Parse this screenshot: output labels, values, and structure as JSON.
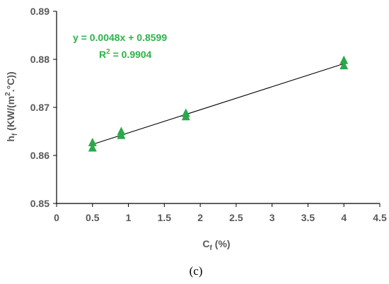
{
  "chart_data": {
    "type": "scatter",
    "xlabel": {
      "base": "C",
      "sub": "f",
      "rest": " (%)"
    },
    "ylabel": {
      "base": "h",
      "sub": "f",
      "rest": " (KW/(m",
      "sup": "2",
      "tail": ".°C))"
    },
    "xlim": [
      0,
      4.5
    ],
    "ylim": [
      0.85,
      0.89
    ],
    "xticks": [
      "0",
      "0.5",
      "1",
      "1.5",
      "2",
      "2.5",
      "3",
      "3.5",
      "4",
      "4.5"
    ],
    "yticks": [
      "0.85",
      "0.86",
      "0.87",
      "0.88",
      "0.89"
    ],
    "series": [
      {
        "x": [
          0.5,
          0.5,
          0.9,
          0.9,
          1.8,
          1.8,
          4.0,
          4.0
        ],
        "y": [
          0.8628,
          0.8617,
          0.8651,
          0.8643,
          0.8689,
          0.8682,
          0.8799,
          0.8788
        ]
      }
    ],
    "trendline": {
      "slope": 0.0048,
      "intercept": 0.8599,
      "x_range": [
        0.5,
        4.0
      ]
    },
    "equation": "y = 0.0048x + 0.8599",
    "r2": {
      "base": "R",
      "sup": "2",
      "rest": " = 0.9904"
    },
    "grid": false,
    "colors": {
      "marker": "#2aa84a",
      "trendline": "#000000",
      "axis": "#000000",
      "labels": "#595959",
      "equation": "#2db34a"
    }
  },
  "caption": "(c)"
}
